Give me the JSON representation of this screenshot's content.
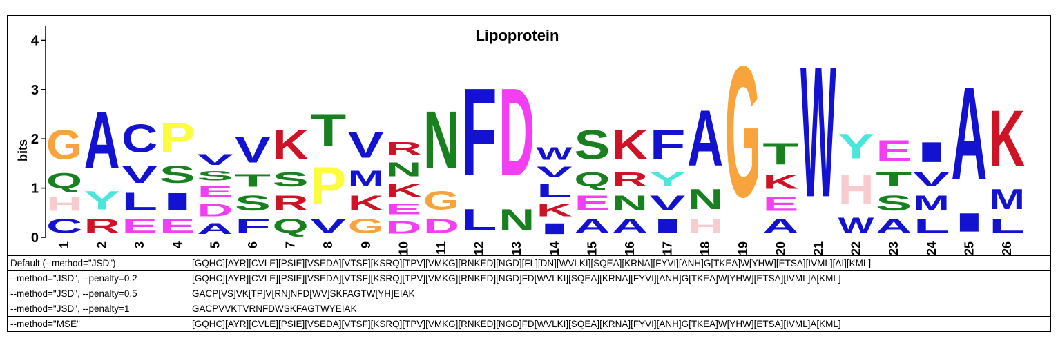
{
  "chart_data": {
    "type": "sequence-logo",
    "title": "Lipoprotein",
    "ylabel": "bits",
    "xlabel": "",
    "ylim": [
      0,
      4.3
    ],
    "yticks": [
      0,
      1,
      2,
      3,
      4
    ],
    "positions": [
      {
        "x": "1",
        "stack": [
          {
            "l": "C",
            "h": 0.45
          },
          {
            "l": "H",
            "h": 0.45
          },
          {
            "l": "Q",
            "h": 0.5
          },
          {
            "l": "G",
            "h": 0.95
          }
        ]
      },
      {
        "x": "2",
        "stack": [
          {
            "l": "R",
            "h": 0.45
          },
          {
            "l": "Y",
            "h": 0.6
          },
          {
            "l": "A",
            "h": 1.85
          }
        ]
      },
      {
        "x": "3",
        "stack": [
          {
            "l": "E",
            "h": 0.45
          },
          {
            "l": "L",
            "h": 0.55
          },
          {
            "l": "V",
            "h": 0.55
          },
          {
            "l": "C",
            "h": 0.9
          }
        ]
      },
      {
        "x": "4",
        "stack": [
          {
            "l": "E",
            "h": 0.45
          },
          {
            "l": "I",
            "h": 0.55
          },
          {
            "l": "S",
            "h": 0.55
          },
          {
            "l": "P",
            "h": 0.95
          }
        ]
      },
      {
        "x": "5",
        "stack": [
          {
            "l": "A",
            "h": 0.35
          },
          {
            "l": "D",
            "h": 0.4
          },
          {
            "l": "E",
            "h": 0.35
          },
          {
            "l": "S",
            "h": 0.3
          },
          {
            "l": "V",
            "h": 0.35
          }
        ]
      },
      {
        "x": "6",
        "stack": [
          {
            "l": "F",
            "h": 0.45
          },
          {
            "l": "S",
            "h": 0.5
          },
          {
            "l": "T",
            "h": 0.4
          },
          {
            "l": "V",
            "h": 0.85
          }
        ]
      },
      {
        "x": "7",
        "stack": [
          {
            "l": "Q",
            "h": 0.45
          },
          {
            "l": "R",
            "h": 0.5
          },
          {
            "l": "S",
            "h": 0.45
          },
          {
            "l": "K",
            "h": 0.95
          }
        ]
      },
      {
        "x": "8",
        "stack": [
          {
            "l": "V",
            "h": 0.45
          },
          {
            "l": "P",
            "h": 1.2
          },
          {
            "l": "T",
            "h": 1.05
          }
        ]
      },
      {
        "x": "9",
        "stack": [
          {
            "l": "G",
            "h": 0.45
          },
          {
            "l": "K",
            "h": 0.5
          },
          {
            "l": "M",
            "h": 0.5
          },
          {
            "l": "V",
            "h": 0.85
          }
        ]
      },
      {
        "x": "10",
        "stack": [
          {
            "l": "D",
            "h": 0.4
          },
          {
            "l": "E",
            "h": 0.35
          },
          {
            "l": "K",
            "h": 0.4
          },
          {
            "l": "N",
            "h": 0.45
          },
          {
            "l": "R",
            "h": 0.4
          }
        ]
      },
      {
        "x": "11",
        "stack": [
          {
            "l": "D",
            "h": 0.45
          },
          {
            "l": "G",
            "h": 0.6
          },
          {
            "l": "N",
            "h": 1.85
          }
        ]
      },
      {
        "x": "12",
        "stack": [
          {
            "l": "L",
            "h": 0.7
          },
          {
            "l": "F",
            "h": 2.85
          }
        ]
      },
      {
        "x": "13",
        "stack": [
          {
            "l": "N",
            "h": 0.7
          },
          {
            "l": "D",
            "h": 2.85
          }
        ]
      },
      {
        "x": "14",
        "stack": [
          {
            "l": "I",
            "h": 0.35
          },
          {
            "l": "K",
            "h": 0.4
          },
          {
            "l": "L",
            "h": 0.4
          },
          {
            "l": "V",
            "h": 0.35
          },
          {
            "l": "W",
            "h": 0.4
          }
        ]
      },
      {
        "x": "15",
        "stack": [
          {
            "l": "A",
            "h": 0.45
          },
          {
            "l": "E",
            "h": 0.5
          },
          {
            "l": "Q",
            "h": 0.45
          },
          {
            "l": "S",
            "h": 0.95
          }
        ]
      },
      {
        "x": "16",
        "stack": [
          {
            "l": "A",
            "h": 0.45
          },
          {
            "l": "N",
            "h": 0.5
          },
          {
            "l": "R",
            "h": 0.45
          },
          {
            "l": "K",
            "h": 0.95
          }
        ]
      },
      {
        "x": "17",
        "stack": [
          {
            "l": "I",
            "h": 0.45
          },
          {
            "l": "V",
            "h": 0.5
          },
          {
            "l": "Y",
            "h": 0.45
          },
          {
            "l": "F",
            "h": 0.95
          }
        ]
      },
      {
        "x": "18",
        "stack": [
          {
            "l": "H",
            "h": 0.45
          },
          {
            "l": "N",
            "h": 0.65
          },
          {
            "l": "A",
            "h": 1.8
          }
        ]
      },
      {
        "x": "19",
        "stack": [
          {
            "l": "G",
            "h": 4.25
          }
        ]
      },
      {
        "x": "20",
        "stack": [
          {
            "l": "A",
            "h": 0.45
          },
          {
            "l": "E",
            "h": 0.45
          },
          {
            "l": "K",
            "h": 0.45
          },
          {
            "l": "T",
            "h": 0.7
          }
        ]
      },
      {
        "x": "21",
        "stack": [
          {
            "l": "W",
            "h": 4.25
          }
        ]
      },
      {
        "x": "22",
        "stack": [
          {
            "l": "W",
            "h": 0.5
          },
          {
            "l": "H",
            "h": 0.95
          },
          {
            "l": "Y",
            "h": 0.8
          }
        ]
      },
      {
        "x": "23",
        "stack": [
          {
            "l": "A",
            "h": 0.45
          },
          {
            "l": "S",
            "h": 0.5
          },
          {
            "l": "T",
            "h": 0.45
          },
          {
            "l": "E",
            "h": 0.7
          }
        ]
      },
      {
        "x": "24",
        "stack": [
          {
            "l": "L",
            "h": 0.45
          },
          {
            "l": "M",
            "h": 0.5
          },
          {
            "l": "V",
            "h": 0.45
          },
          {
            "l": "I",
            "h": 0.65
          }
        ]
      },
      {
        "x": "25",
        "stack": [
          {
            "l": "I",
            "h": 0.6
          },
          {
            "l": "A",
            "h": 3.0
          }
        ]
      },
      {
        "x": "26",
        "stack": [
          {
            "l": "L",
            "h": 0.45
          },
          {
            "l": "M",
            "h": 0.65
          },
          {
            "l": "K",
            "h": 1.8
          }
        ]
      }
    ]
  },
  "letter_colors": {
    "A": "#1212d0",
    "C": "#1212d0",
    "F": "#1212d0",
    "I": "#1212d0",
    "L": "#1212d0",
    "M": "#1212d0",
    "V": "#1212d0",
    "W": "#1212d0",
    "D": "#f43ef4",
    "E": "#f43ef4",
    "G": "#f8a33b",
    "H": "#f8cccf",
    "K": "#cf1326",
    "R": "#cf1326",
    "N": "#19801f",
    "Q": "#19801f",
    "S": "#19801f",
    "T": "#19801f",
    "P": "#fcfc3e",
    "Y": "#4ae6d9"
  },
  "table": {
    "rows": [
      {
        "method": "Default (--method=\"JSD\")",
        "pattern": "[GQHC][AYR][CVLE][PSIE][VSEDA][VTSF][KSRQ][TPV][VMKG][RNKED][NGD][FL][DN][WVLKI][SQEA][KRNA][FYVI][ANH]G[TKEA]W[YHW][ETSA][IVML][AI][KML]"
      },
      {
        "method": "--method=\"JSD\", --penalty=0.2",
        "pattern": "[GQHC][AYR][CVLE][PSIE][VSEDA][VTSF][KSRQ][TPV][VMKG][RNKED][NGD]FD[WVLKI][SQEA][KRNA][FYVI][ANH]G[TKEA]W[YHW][ETSA][IVML]A[KML]"
      },
      {
        "method": "--method=\"JSD\", --penalty=0.5",
        "pattern": "GACP[VS]VK[TP]V[RN]NFD[WV]SKFAGTW[YH]EIAK"
      },
      {
        "method": "--method=\"JSD\", --penalty=1",
        "pattern": "GACPVVKTVRNFDWSKFAGTWYEIAK"
      },
      {
        "method": "--method=\"MSE\"",
        "pattern": "[GQHC][AYR][CVLE][PSIE][VSEDA][VTSF][KSRQ][TPV][VMKG][RNKED][NGD]FD[WVLKI][SQEA][KRNA][FYVI][ANH]G[TKEA]W[YHW][ETSA][IVML]A[KML]"
      }
    ]
  }
}
